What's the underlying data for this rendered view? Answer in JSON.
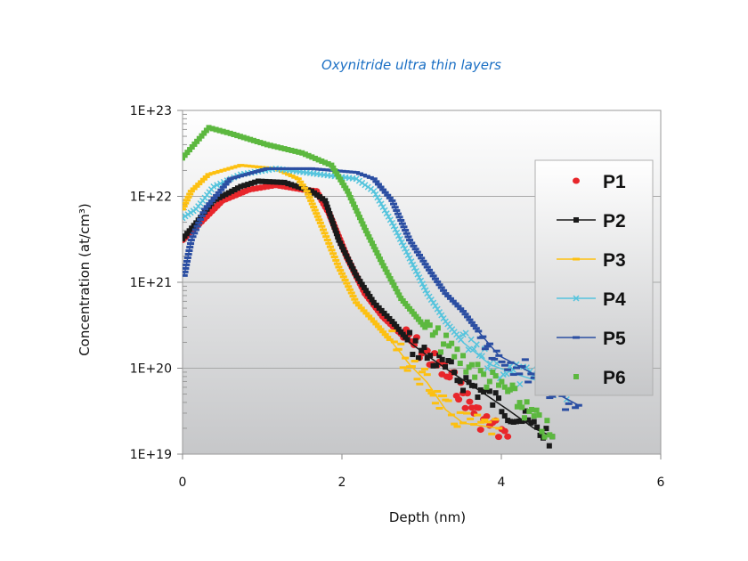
{
  "chart_data": {
    "type": "scatter",
    "title": "Oxynitride ultra thin layers",
    "xlabel": "Depth (nm)",
    "ylabel": "Concentration (at/cm³)",
    "xlim": [
      0,
      6
    ],
    "ylim": [
      1e+19,
      1e+23
    ],
    "yscale": "log",
    "x_ticks": [
      "0",
      "2",
      "4",
      "6"
    ],
    "y_ticks": [
      "1E+23",
      "1E+22",
      "1E+21",
      "1E+20",
      "1E+19"
    ],
    "grid": "horizontal",
    "legend_position": "right",
    "series": [
      {
        "name": "P1",
        "color": "#e8262b",
        "marker": "circle",
        "line": false,
        "points": [
          [
            0,
            3.1e+21
          ],
          [
            0.17,
            4.4e+21
          ],
          [
            0.5,
            8.9e+21
          ],
          [
            0.84,
            1.2e+22
          ],
          [
            1.17,
            1.35e+22
          ],
          [
            1.51,
            1.2e+22
          ],
          [
            1.68,
            1.15e+22
          ],
          [
            1.84,
            6.3e+21
          ],
          [
            2.07,
            1.9e+21
          ],
          [
            2.29,
            7.4e+20
          ],
          [
            2.51,
            4e+20
          ],
          [
            2.74,
            2.5e+20
          ],
          [
            3.07,
            1.4e+20
          ],
          [
            3.41,
            6.8e+19
          ],
          [
            3.74,
            2.6e+19
          ],
          [
            4.08,
            1.6e+19
          ]
        ]
      },
      {
        "name": "P2",
        "color": "#1a1a1a",
        "marker": "square",
        "line": true,
        "points": [
          [
            0,
            3.2e+21
          ],
          [
            0.17,
            4.9e+21
          ],
          [
            0.39,
            8.9e+21
          ],
          [
            0.73,
            1.3e+22
          ],
          [
            0.95,
            1.5e+22
          ],
          [
            1.28,
            1.45e+22
          ],
          [
            1.62,
            1.15e+22
          ],
          [
            1.79,
            8.9e+21
          ],
          [
            1.96,
            3.1e+21
          ],
          [
            2.18,
            1.2e+21
          ],
          [
            2.4,
            5.8e+20
          ],
          [
            2.63,
            3.5e+20
          ],
          [
            2.85,
            2e+20
          ],
          [
            3.07,
            1.4e+20
          ],
          [
            3.41,
            8.5e+19
          ],
          [
            3.74,
            5.4e+19
          ],
          [
            4.08,
            3.3e+19
          ],
          [
            4.41,
            2e+19
          ],
          [
            4.64,
            1.6e+19
          ]
        ]
      },
      {
        "name": "P3",
        "color": "#fdc010",
        "marker": "dash",
        "line": true,
        "points": [
          [
            0,
            7.1e+21
          ],
          [
            0.11,
            1.15e+22
          ],
          [
            0.33,
            1.8e+22
          ],
          [
            0.73,
            2.3e+22
          ],
          [
            1.17,
            2.1e+22
          ],
          [
            1.45,
            1.6e+22
          ],
          [
            1.56,
            1.15e+22
          ],
          [
            1.73,
            4.9e+21
          ],
          [
            1.96,
            1.5e+21
          ],
          [
            2.18,
            5.8e+20
          ],
          [
            2.4,
            3.5e+20
          ],
          [
            2.63,
            2e+20
          ],
          [
            2.85,
            1.1e+20
          ],
          [
            3.07,
            6.8e+19
          ],
          [
            3.3,
            3.3e+19
          ],
          [
            3.52,
            2.3e+19
          ],
          [
            3.97,
            2e+19
          ]
        ]
      },
      {
        "name": "P4",
        "color": "#55c4dd",
        "marker": "x",
        "line": true,
        "points": [
          [
            0,
            5.6e+21
          ],
          [
            0.17,
            7.1e+21
          ],
          [
            0.39,
            1.3e+22
          ],
          [
            0.73,
            1.8e+22
          ],
          [
            1.17,
            2.1e+22
          ],
          [
            1.73,
            1.8e+22
          ],
          [
            2.18,
            1.6e+22
          ],
          [
            2.4,
            1.15e+22
          ],
          [
            2.63,
            4.9e+21
          ],
          [
            2.85,
            1.9e+21
          ],
          [
            3.07,
            7.4e+20
          ],
          [
            3.3,
            3.5e+20
          ],
          [
            3.52,
            2e+20
          ],
          [
            3.86,
            1.1e+20
          ],
          [
            4.19,
            8.5e+19
          ],
          [
            4.53,
            6.8e+19
          ],
          [
            4.86,
            5.4e+19
          ]
        ]
      },
      {
        "name": "P5",
        "color": "#2b4ea2",
        "marker": "dash",
        "line": true,
        "points": [
          [
            0.02,
            1.2e+21
          ],
          [
            0.11,
            3.1e+21
          ],
          [
            0.28,
            7.1e+21
          ],
          [
            0.6,
            1.6e+22
          ],
          [
            1.06,
            2.1e+22
          ],
          [
            1.62,
            2.1e+22
          ],
          [
            2.18,
            1.9e+22
          ],
          [
            2.4,
            1.6e+22
          ],
          [
            2.63,
            8.9e+21
          ],
          [
            2.85,
            3.1e+21
          ],
          [
            3.07,
            1.5e+21
          ],
          [
            3.3,
            7.4e+20
          ],
          [
            3.52,
            4.6e+20
          ],
          [
            3.74,
            2.5e+20
          ],
          [
            3.97,
            1.4e+20
          ],
          [
            4.19,
            1.1e+20
          ],
          [
            4.41,
            8.5e+19
          ],
          [
            4.64,
            5.4e+19
          ],
          [
            4.97,
            3.7e+19
          ]
        ]
      },
      {
        "name": "P6",
        "color": "#5cb83f",
        "marker": "square",
        "line": false,
        "points": [
          [
            0,
            2.8e+22
          ],
          [
            0.33,
            6.3e+22
          ],
          [
            0.6,
            5.4e+22
          ],
          [
            1.06,
            4e+22
          ],
          [
            1.5,
            3.2e+22
          ],
          [
            1.87,
            2.3e+22
          ],
          [
            2.07,
            1.15e+22
          ],
          [
            2.3,
            4e+21
          ],
          [
            2.5,
            1.7e+21
          ],
          [
            2.74,
            6.5e+20
          ],
          [
            3.07,
            2.8e+20
          ],
          [
            3.41,
            1.5e+20
          ],
          [
            3.74,
            8.5e+19
          ],
          [
            4.08,
            5.4e+19
          ],
          [
            4.41,
            2.6e+19
          ],
          [
            4.64,
            1.6e+19
          ]
        ]
      }
    ]
  }
}
